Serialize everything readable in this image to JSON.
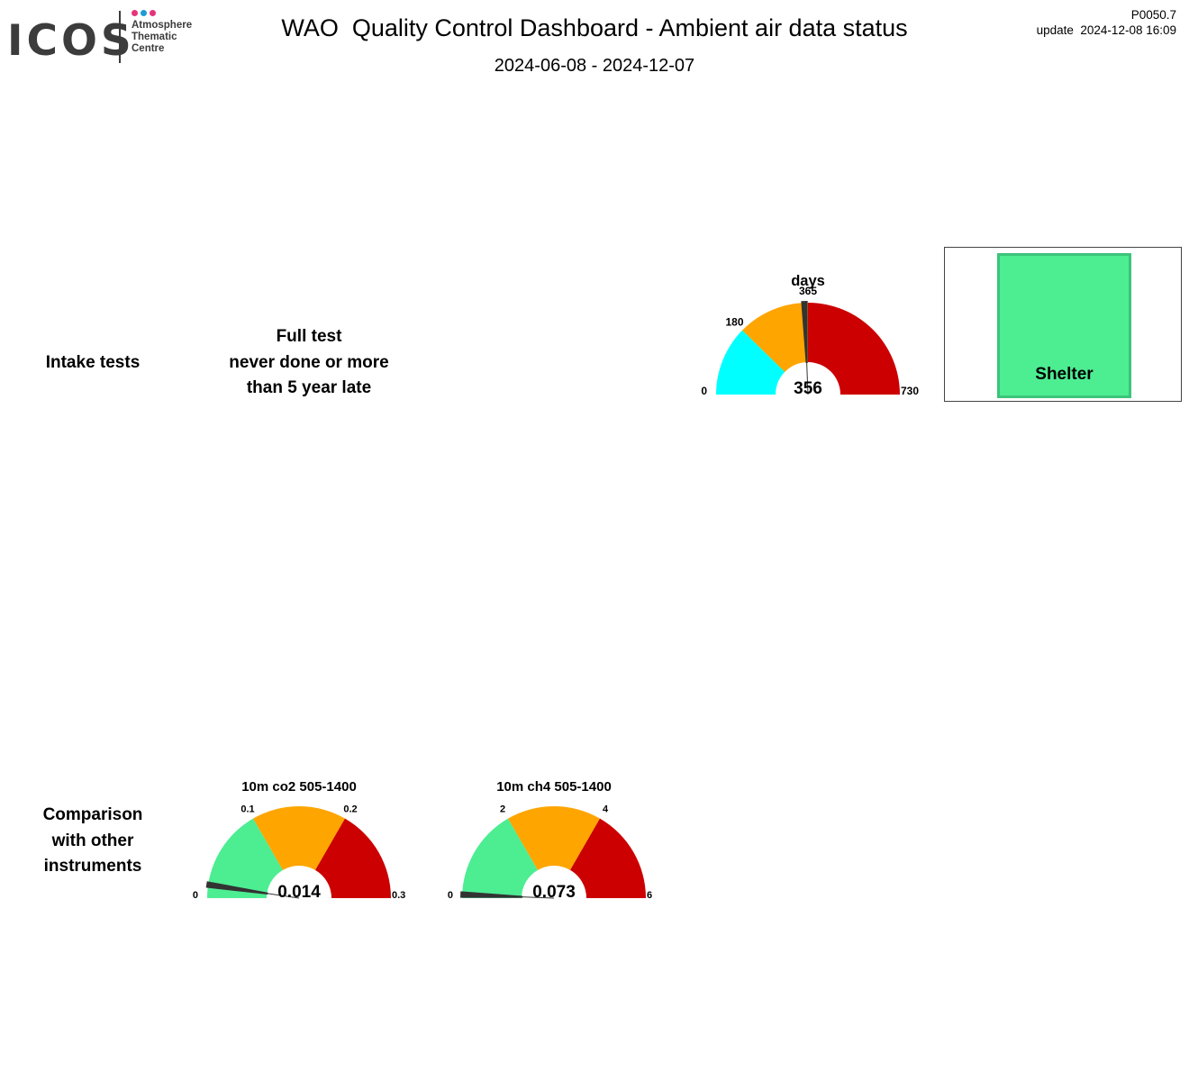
{
  "header": {
    "title": "WAO  Quality Control Dashboard - Ambient air data status",
    "date_range": "2024-06-08 - 2024-12-07",
    "version": "P0050.7",
    "updated": "update  2024-12-08 16:09"
  },
  "logo": {
    "wordmark": "ICOS",
    "subtitle": [
      "Atmosphere",
      "Thematic",
      "Centre"
    ],
    "dot_colors": [
      "#e6337a",
      "#1c9bd7",
      "#e6337a"
    ]
  },
  "sections": {
    "intake": {
      "label": [
        "Intake tests"
      ],
      "note": [
        "Full test",
        "never done or more",
        "than 5 year late"
      ]
    },
    "comparison": {
      "label": [
        "Comparison",
        "with other",
        "instruments"
      ]
    }
  },
  "shelter": {
    "label": "Shelter",
    "color": "#4ded92"
  },
  "chart_data": [
    {
      "id": "intake-gauge",
      "type": "gauge",
      "title": "days",
      "min": 0,
      "max": 730,
      "value": 356,
      "value_label": "356",
      "marker": 356,
      "bands": [
        {
          "from": 0,
          "to": 180,
          "color": "#00ffff"
        },
        {
          "from": 180,
          "to": 365,
          "color": "#ffa500"
        },
        {
          "from": 365,
          "to": 730,
          "color": "#cc0000"
        }
      ],
      "tick_labels": [
        {
          "value": 0,
          "text": "0"
        },
        {
          "value": 180,
          "text": "180"
        },
        {
          "value": 365,
          "text": "365"
        },
        {
          "value": 730,
          "text": "730"
        }
      ]
    },
    {
      "id": "co2-gauge",
      "type": "gauge",
      "title": "10m co2 505-1400",
      "min": 0,
      "max": 0.3,
      "value": 0.014,
      "value_label": "0.014",
      "marker": 0.014,
      "bands": [
        {
          "from": 0,
          "to": 0.1,
          "color": "#4ded92"
        },
        {
          "from": 0.1,
          "to": 0.2,
          "color": "#ffa500"
        },
        {
          "from": 0.2,
          "to": 0.3,
          "color": "#cc0000"
        }
      ],
      "tick_labels": [
        {
          "value": 0,
          "text": "0"
        },
        {
          "value": 0.1,
          "text": "0.1"
        },
        {
          "value": 0.2,
          "text": "0.2"
        },
        {
          "value": 0.3,
          "text": "0.3"
        }
      ]
    },
    {
      "id": "ch4-gauge",
      "type": "gauge",
      "title": "10m ch4 505-1400",
      "min": 0,
      "max": 6,
      "value": 0.073,
      "value_label": "0.073",
      "marker": 0.073,
      "bands": [
        {
          "from": 0,
          "to": 2,
          "color": "#4ded92"
        },
        {
          "from": 2,
          "to": 4,
          "color": "#ffa500"
        },
        {
          "from": 4,
          "to": 6,
          "color": "#cc0000"
        }
      ],
      "tick_labels": [
        {
          "value": 0,
          "text": "0"
        },
        {
          "value": 2,
          "text": "2"
        },
        {
          "value": 4,
          "text": "4"
        },
        {
          "value": 6,
          "text": "6"
        }
      ]
    }
  ]
}
